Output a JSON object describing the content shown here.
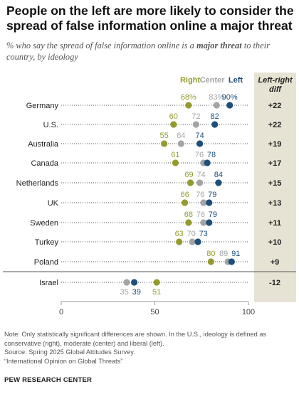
{
  "title": "People on the left are more likely to consider the spread of false information online a major threat",
  "subtitle": {
    "before": "% who say the spread of false information online is a ",
    "emphasis": "major threat",
    "after": " to their country, by ideology"
  },
  "colors": {
    "right": "#949b2d",
    "center": "#a4a4a4",
    "left": "#1c4f7c",
    "diff_panel": "#e7e3d4"
  },
  "chart_data": {
    "type": "dot",
    "legend": [
      "Right",
      "Center",
      "Left"
    ],
    "diff_label": "Left-right diff",
    "xlim": [
      0,
      100
    ],
    "x_ticks": [
      0,
      50,
      100
    ],
    "rows": [
      {
        "country": "Germany",
        "right": 68,
        "center": 83,
        "left": 90,
        "diff": "+22"
      },
      {
        "country": "U.S.",
        "right": 60,
        "center": 72,
        "left": 82,
        "diff": "+22"
      },
      {
        "country": "Australia",
        "right": 55,
        "center": 64,
        "left": 74,
        "diff": "+19"
      },
      {
        "country": "Canada",
        "right": 61,
        "center": 76,
        "left": 78,
        "diff": "+17"
      },
      {
        "country": "Netherlands",
        "right": 69,
        "center": 74,
        "left": 84,
        "diff": "+15"
      },
      {
        "country": "UK",
        "right": 66,
        "center": 76,
        "left": 79,
        "diff": "+13"
      },
      {
        "country": "Sweden",
        "right": 68,
        "center": 76,
        "left": 79,
        "diff": "+11"
      },
      {
        "country": "Turkey",
        "right": 63,
        "center": 70,
        "left": 73,
        "diff": "+10"
      },
      {
        "country": "Poland",
        "right": 80,
        "center": 89,
        "left": 91,
        "diff": "+9"
      },
      {
        "country": "Israel",
        "right": 51,
        "center": 35,
        "left": 39,
        "diff": "-12"
      }
    ]
  },
  "notes": {
    "note_1": "Note: Only statistically significant differences are shown. In the U.S., ideology is defined as",
    "note_2": "conservative (right), moderate (center) and liberal (left).",
    "source": "Source: Spring 2025 Global Attitudes Survey.",
    "report": "“International Opinion on Global Threats”"
  },
  "organization": "PEW RESEARCH CENTER"
}
